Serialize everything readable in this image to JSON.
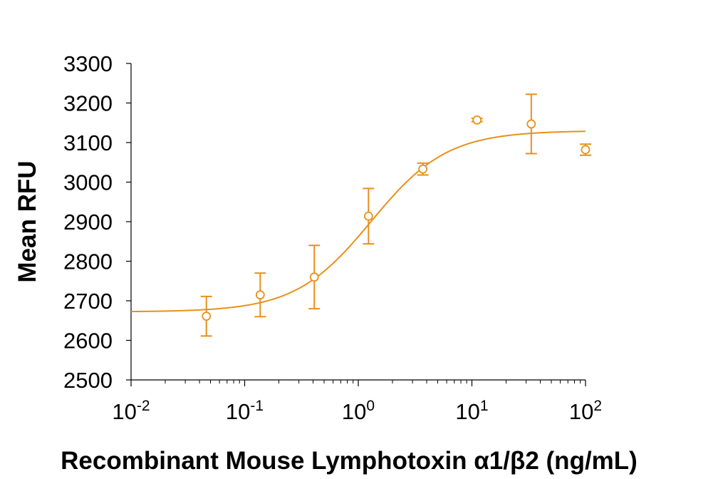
{
  "chart_data": {
    "type": "scatter",
    "title": "",
    "xlabel": "Recombinant Mouse Lymphotoxin α1/β2 (ng/mL)",
    "ylabel": "Mean RFU",
    "x_scale": "log",
    "xlim": [
      0.01,
      100
    ],
    "ylim": [
      2500,
      3300
    ],
    "x_ticks": [
      {
        "value": 0.01,
        "base": "10",
        "exp": "-2"
      },
      {
        "value": 0.1,
        "base": "10",
        "exp": "-1"
      },
      {
        "value": 1,
        "base": "10",
        "exp": "0"
      },
      {
        "value": 10,
        "base": "10",
        "exp": "1"
      },
      {
        "value": 100,
        "base": "10",
        "exp": "2"
      }
    ],
    "y_ticks": [
      {
        "value": 2500,
        "label": "2500"
      },
      {
        "value": 2600,
        "label": "2600"
      },
      {
        "value": 2700,
        "label": "2700"
      },
      {
        "value": 2800,
        "label": "2800"
      },
      {
        "value": 2900,
        "label": "2900"
      },
      {
        "value": 3000,
        "label": "3000"
      },
      {
        "value": 3100,
        "label": "3100"
      },
      {
        "value": 3200,
        "label": "3200"
      },
      {
        "value": 3300,
        "label": "3300"
      }
    ],
    "grid": false,
    "legend": "none",
    "color": "#e8901a",
    "series": [
      {
        "points": [
          {
            "x": 0.046,
            "y": 2661,
            "err": 50
          },
          {
            "x": 0.137,
            "y": 2715,
            "err": 55
          },
          {
            "x": 0.41,
            "y": 2760,
            "err": 80
          },
          {
            "x": 1.23,
            "y": 2914,
            "err": 70
          },
          {
            "x": 3.7,
            "y": 3033,
            "err": 15
          },
          {
            "x": 11.1,
            "y": 3157,
            "err": 4
          },
          {
            "x": 33.3,
            "y": 3147,
            "err": 75
          },
          {
            "x": 100,
            "y": 3082,
            "err": 14
          }
        ]
      }
    ],
    "fit": {
      "model": "4PL",
      "bottom": 2672,
      "top": 3130,
      "ec50": 1.3,
      "hill": 1.3
    }
  }
}
